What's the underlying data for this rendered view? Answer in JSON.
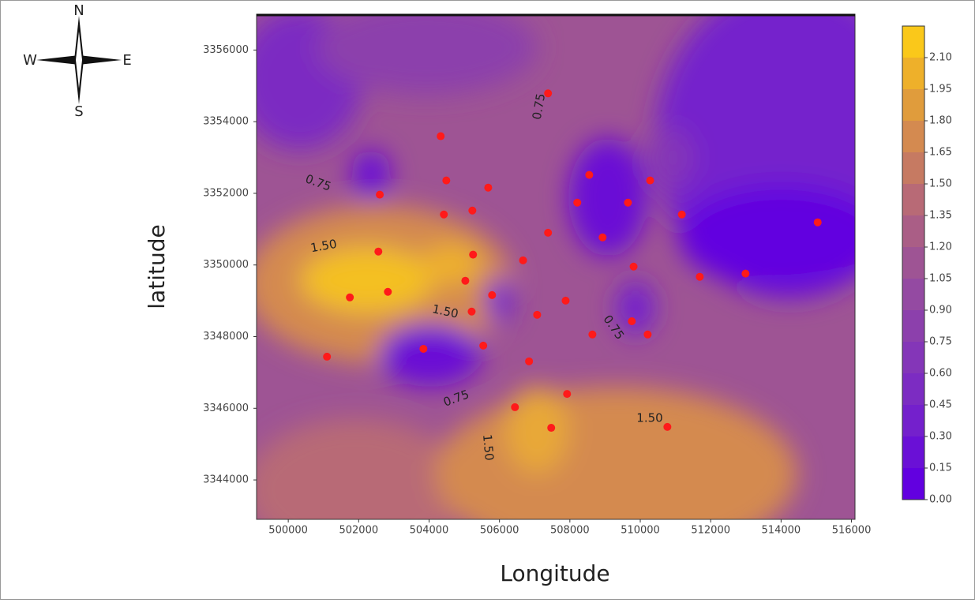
{
  "chart_data": {
    "type": "scatter",
    "x_label": "Longitude",
    "y_label": "latitude",
    "compass": {
      "n": "N",
      "s": "S",
      "w": "W",
      "e": "E"
    },
    "xlim": [
      499100,
      516100
    ],
    "ylim": [
      3342900,
      3357000
    ],
    "xticks": [
      500000,
      502000,
      504000,
      506000,
      508000,
      510000,
      512000,
      514000,
      516000
    ],
    "yticks": [
      3344000,
      3346000,
      3348000,
      3350000,
      3352000,
      3354000,
      3356000
    ],
    "x": [
      507380,
      504330,
      504490,
      502600,
      505680,
      508550,
      510280,
      508210,
      509650,
      511180,
      515040,
      504420,
      505230,
      507380,
      508930,
      502560,
      505250,
      506670,
      509810,
      511690,
      512990,
      505030,
      501750,
      502830,
      505790,
      507880,
      507070,
      505210,
      509760,
      508640,
      510210,
      501100,
      503840,
      505540,
      506840,
      507920,
      506440,
      507470,
      510770
    ],
    "values": [
      3354790,
      3353595,
      3352360,
      3351963,
      3352160,
      3352515,
      3352360,
      3351740,
      3351740,
      3351410,
      3351190,
      3351410,
      3351520,
      3350900,
      3350770,
      3350375,
      3350290,
      3350130,
      3349955,
      3349670,
      3349760,
      3349560,
      3349095,
      3349250,
      3349160,
      3349005,
      3348610,
      3348700,
      3348430,
      3348060,
      3348060,
      3347440,
      3347660,
      3347750,
      3347310,
      3346400,
      3346030,
      3345455,
      3345480
    ],
    "color": "#ff1a1a",
    "contour_labels": [
      "0.75",
      "0.75",
      "1.50",
      "1.50",
      "0.75",
      "0.75",
      "1.50",
      "1.50"
    ],
    "colorbar": {
      "lim": [
        0,
        2.25
      ],
      "ticks": [
        {
          "value": 0,
          "label": "0.00"
        },
        {
          "value": 0.15,
          "label": "0.15"
        },
        {
          "value": 0.3,
          "label": "0.30"
        },
        {
          "value": 0.45,
          "label": "0.45"
        },
        {
          "value": 0.6,
          "label": "0.60"
        },
        {
          "value": 0.75,
          "label": "0.75"
        },
        {
          "value": 0.9,
          "label": "0.90"
        },
        {
          "value": 1.05,
          "label": "1.05"
        },
        {
          "value": 1.2,
          "label": "1.20"
        },
        {
          "value": 1.35,
          "label": "1.35"
        },
        {
          "value": 1.5,
          "label": "1.50"
        },
        {
          "value": 1.65,
          "label": "1.65"
        },
        {
          "value": 1.8,
          "label": "1.80"
        },
        {
          "value": 1.95,
          "label": "1.95"
        },
        {
          "value": 2.1,
          "label": "2.10"
        }
      ],
      "colors": [
        "#6200e0",
        "#6a10d6",
        "#7420cc",
        "#7c2cc2",
        "#8436b8",
        "#8c40ac",
        "#944aa2",
        "#9e5494",
        "#aa5e86",
        "#b86a76",
        "#c67a62",
        "#d48a50",
        "#e09c3c",
        "#eeb02a",
        "#fac81a"
      ]
    }
  }
}
